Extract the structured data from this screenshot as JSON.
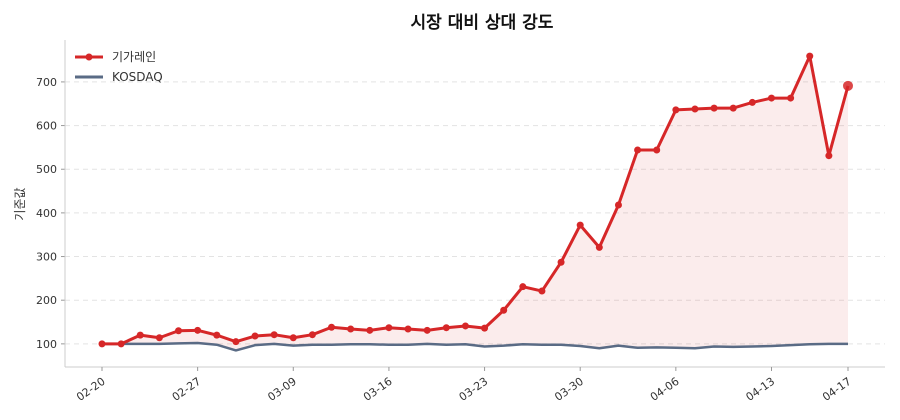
{
  "chart_data": {
    "type": "line",
    "title": "시장 대비 상대 강도",
    "xlabel": "",
    "ylabel": "기준값",
    "ylim": [
      47,
      796
    ],
    "yticks": [
      100,
      200,
      300,
      400,
      500,
      600,
      700
    ],
    "grid": "horizontal dashed",
    "legend": "top-left",
    "x": [
      "02-20",
      "02-23",
      "02-24",
      "02-25",
      "02-26",
      "02-27",
      "03-03",
      "03-04",
      "03-05",
      "03-06",
      "03-09",
      "03-10",
      "03-11",
      "03-12",
      "03-13",
      "03-16",
      "03-17",
      "03-18",
      "03-19",
      "03-20",
      "03-23",
      "03-24",
      "03-25",
      "03-26",
      "03-27",
      "03-30",
      "03-31",
      "04-01",
      "04-02",
      "04-03",
      "04-06",
      "04-07",
      "04-08",
      "04-09",
      "04-10",
      "04-13",
      "04-14",
      "04-15",
      "04-16",
      "04-17"
    ],
    "xtick_labels": [
      "02-20",
      "02-27",
      "03-09",
      "03-16",
      "03-23",
      "03-30",
      "04-06",
      "04-13",
      "04-17"
    ],
    "series": [
      {
        "name": "기가레인",
        "color": "#d62728",
        "fill": true,
        "markers": true,
        "values": [
          100,
          100,
          120,
          114,
          130,
          131,
          120,
          105,
          118,
          121,
          114,
          121,
          138,
          134,
          131,
          137,
          134,
          131,
          137,
          141,
          136,
          177,
          231,
          221,
          287,
          372,
          321,
          418,
          544,
          544,
          636,
          638,
          640,
          640,
          653,
          663,
          663,
          759,
          531,
          691
        ]
      },
      {
        "name": "KOSDAQ",
        "color": "#5a6b85",
        "fill": false,
        "markers": false,
        "values": [
          100,
          100,
          100,
          100,
          101,
          102,
          98,
          85,
          97,
          100,
          96,
          98,
          98,
          99,
          99,
          98,
          98,
          100,
          98,
          99,
          94,
          96,
          99,
          98,
          98,
          95,
          90,
          96,
          91,
          92,
          91,
          90,
          94,
          93,
          94,
          95,
          97,
          99,
          100,
          100
        ]
      }
    ]
  }
}
